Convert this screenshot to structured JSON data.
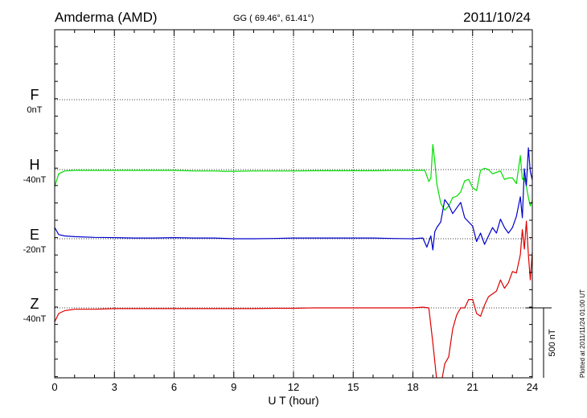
{
  "header": {
    "station": "Amderma (AMD)",
    "coords": "GG ( 69.46°,  61.41°)",
    "date": "2011/10/24"
  },
  "footer": {
    "plotted": "Plotted at 2011/11/24 01:00 UT"
  },
  "chart_data": {
    "type": "line",
    "xlabel": "U T (hour)",
    "xlim": [
      0,
      24
    ],
    "xticks": [
      0,
      3,
      6,
      9,
      12,
      15,
      18,
      21,
      24
    ],
    "scale_bar": {
      "label": "500 nT",
      "nT": 500
    },
    "ylabel": "",
    "grid": true,
    "components": [
      {
        "name": "F",
        "baseline_label": "0nT",
        "color": "#ffb000"
      },
      {
        "name": "H",
        "baseline_label": "-40nT",
        "color": "#00dd00"
      },
      {
        "name": "E",
        "baseline_label": "-20nT",
        "color": "#0000cc"
      },
      {
        "name": "Z",
        "baseline_label": "-40nT",
        "color": "#dd0000"
      }
    ],
    "series": [
      {
        "name": "H",
        "color": "#00dd00",
        "baseline": -40,
        "x": [
          0,
          0.2,
          0.5,
          1,
          2,
          3,
          4,
          5,
          6,
          7,
          8,
          8.5,
          9,
          10,
          11,
          12,
          13,
          14,
          15,
          16,
          17,
          18,
          18.6,
          18.8,
          18.9,
          19.0,
          19.1,
          19.2,
          19.4,
          19.6,
          19.8,
          20.0,
          20.2,
          20.4,
          20.6,
          20.8,
          21.0,
          21.2,
          21.4,
          21.6,
          21.8,
          22.0,
          22.2,
          22.4,
          22.6,
          22.8,
          23.0,
          23.2,
          23.4,
          23.5,
          23.6,
          23.7,
          23.8,
          23.9,
          24.0
        ],
        "y": [
          -120,
          -30,
          -10,
          -5,
          -5,
          -5,
          -5,
          -5,
          -5,
          -10,
          -10,
          -12,
          -12,
          -10,
          -10,
          -10,
          -8,
          -8,
          -8,
          -8,
          -5,
          -5,
          -5,
          -85,
          -60,
          180,
          60,
          -100,
          -240,
          -290,
          -260,
          -200,
          -190,
          -160,
          -80,
          -70,
          -130,
          -150,
          -5,
          10,
          0,
          -30,
          -20,
          -10,
          -70,
          -60,
          -60,
          -100,
          100,
          -70,
          -60,
          -120,
          -200,
          -260,
          -220
        ]
      },
      {
        "name": "E",
        "color": "#0000cc",
        "baseline": -20,
        "x": [
          0,
          0.2,
          0.5,
          1,
          2,
          3,
          4,
          5,
          6,
          7,
          8,
          9,
          10,
          11,
          12,
          13,
          14,
          15,
          16,
          17,
          18,
          18.5,
          18.7,
          18.9,
          19.0,
          19.1,
          19.2,
          19.4,
          19.6,
          19.8,
          20.0,
          20.2,
          20.4,
          20.6,
          20.8,
          21.0,
          21.2,
          21.4,
          21.6,
          21.8,
          22.0,
          22.2,
          22.4,
          22.6,
          22.8,
          23.0,
          23.2,
          23.4,
          23.5,
          23.6,
          23.7,
          23.8,
          23.9,
          24.0
        ],
        "y": [
          80,
          30,
          20,
          15,
          10,
          8,
          5,
          5,
          8,
          5,
          5,
          0,
          0,
          2,
          5,
          5,
          5,
          5,
          5,
          2,
          0,
          5,
          -60,
          20,
          -80,
          50,
          80,
          120,
          280,
          240,
          180,
          220,
          260,
          150,
          120,
          90,
          -20,
          40,
          -40,
          20,
          80,
          40,
          140,
          80,
          40,
          80,
          160,
          300,
          150,
          500,
          380,
          650,
          480,
          420
        ]
      },
      {
        "name": "Z",
        "color": "#dd0000",
        "baseline": -40,
        "x": [
          0,
          0.2,
          0.5,
          1,
          2,
          3,
          4,
          5,
          6,
          7,
          8,
          9,
          10,
          11,
          12,
          13,
          14,
          15,
          16,
          17,
          18,
          18.5,
          18.8,
          19.0,
          19.2,
          19.4,
          19.6,
          19.8,
          20.0,
          20.2,
          20.4,
          20.6,
          20.8,
          21.0,
          21.2,
          21.4,
          21.6,
          21.8,
          22.0,
          22.2,
          22.4,
          22.6,
          22.8,
          23.0,
          23.2,
          23.4,
          23.5,
          23.6,
          23.7,
          23.8,
          23.9,
          24.0
        ],
        "y": [
          -100,
          -40,
          -20,
          -10,
          -10,
          -5,
          -5,
          -5,
          -5,
          -5,
          -5,
          -5,
          -5,
          -3,
          -3,
          0,
          0,
          0,
          0,
          0,
          0,
          5,
          0,
          -250,
          -520,
          -560,
          -400,
          -350,
          -150,
          -50,
          0,
          0,
          60,
          60,
          -40,
          -60,
          20,
          80,
          100,
          120,
          200,
          140,
          180,
          260,
          250,
          380,
          560,
          420,
          620,
          380,
          200,
          400
        ]
      }
    ]
  }
}
